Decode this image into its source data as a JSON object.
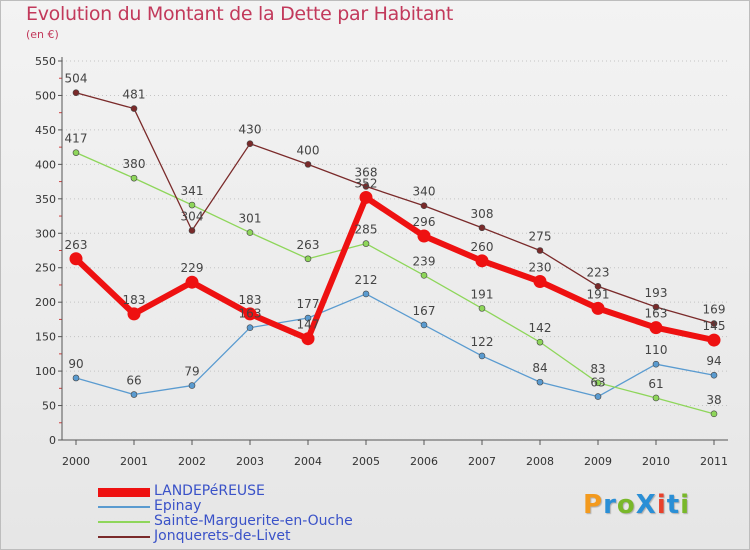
{
  "title": "Evolution du Montant de la Dette par Habitant",
  "subtitle": "(en €)",
  "logo": {
    "text": "ProXiti",
    "colors": [
      "#f39a1e",
      "#2a8fd6",
      "#79b82a",
      "#e8412c"
    ]
  },
  "chart_data": {
    "type": "line",
    "x": [
      2000,
      2001,
      2002,
      2003,
      2004,
      2005,
      2006,
      2007,
      2008,
      2009,
      2010,
      2011
    ],
    "ylim": [
      0,
      550
    ],
    "yticks": [
      0,
      50,
      100,
      150,
      200,
      250,
      300,
      350,
      400,
      450,
      500,
      550
    ],
    "grid": "horizontal-dotted",
    "legend": "bottom-left",
    "series": [
      {
        "name": "LANDEPéREUSE",
        "color": "#ee1111",
        "values": [
          263,
          183,
          229,
          183,
          147,
          352,
          296,
          260,
          230,
          191,
          163,
          145
        ],
        "thick": true
      },
      {
        "name": "Epinay",
        "color": "#5a9bd0",
        "values": [
          90,
          66,
          79,
          163,
          177,
          212,
          167,
          122,
          84,
          63,
          110,
          94
        ]
      },
      {
        "name": "Sainte-Marguerite-en-Ouche",
        "color": "#8ed65a",
        "values": [
          417,
          380,
          341,
          301,
          263,
          285,
          239,
          191,
          142,
          83,
          61,
          38
        ]
      },
      {
        "name": "Jonquerets-de-Livet",
        "color": "#7a2a2a",
        "values": [
          504,
          481,
          304,
          430,
          400,
          368,
          340,
          308,
          275,
          223,
          193,
          169
        ]
      }
    ]
  }
}
